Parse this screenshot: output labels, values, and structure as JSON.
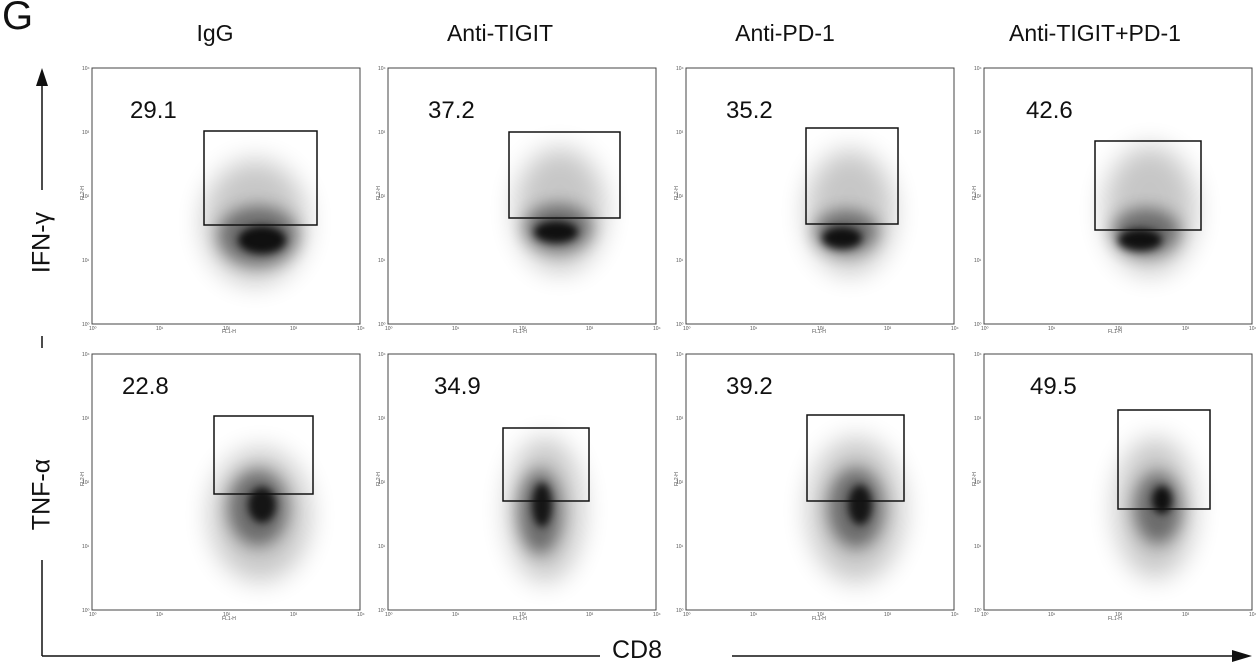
{
  "panel_letter": "G",
  "columns": [
    "IgG",
    "Anti-TIGIT",
    "Anti-PD-1",
    "Anti-TIGIT+PD-1"
  ],
  "rows": [
    "IFN-γ",
    "TNF-α"
  ],
  "x_axis_label": "CD8",
  "plot_axis_labels": {
    "x": "FL1-H",
    "y": "FL2-H"
  },
  "tick_labels": [
    "10⁰",
    "10¹",
    "10²",
    "10³",
    "10⁴"
  ],
  "gate_percentages": [
    [
      "29.1",
      "37.2",
      "35.2",
      "42.6"
    ],
    [
      "22.8",
      "34.9",
      "39.2",
      "49.5"
    ]
  ],
  "colors": {
    "density": "#000000",
    "gate": "#111111",
    "frame": "#444444"
  }
}
